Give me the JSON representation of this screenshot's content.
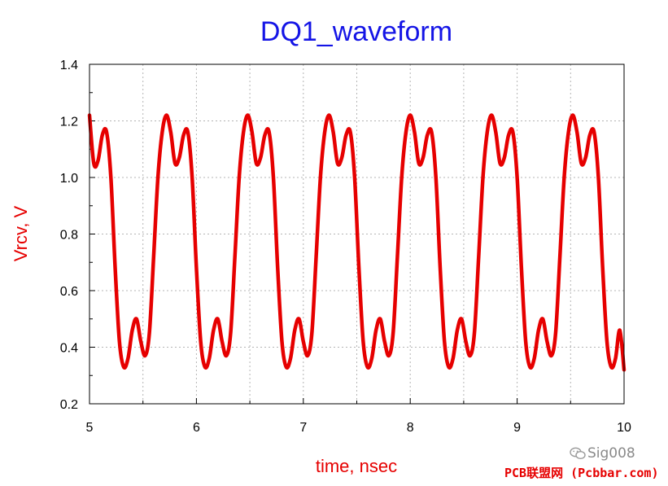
{
  "chart_data": {
    "type": "line",
    "title": "DQ1_waveform",
    "xlabel": "time, nsec",
    "ylabel": "Vrcv, V",
    "xlim": [
      5,
      10
    ],
    "ylim": [
      0.2,
      1.4
    ],
    "x_ticks": [
      "5",
      "6",
      "7",
      "8",
      "9",
      "10"
    ],
    "y_ticks": [
      "0.2",
      "0.4",
      "0.6",
      "0.8",
      "1.0",
      "1.2",
      "1.4"
    ],
    "x_tick_values": [
      5,
      6,
      7,
      8,
      9,
      10
    ],
    "y_tick_values": [
      0.2,
      0.4,
      0.6,
      0.8,
      1.0,
      1.2,
      1.4
    ],
    "grid": true,
    "series": [
      {
        "color": "#e60000",
        "x": [
          5.0,
          5.04,
          5.08,
          5.12,
          5.16,
          5.2,
          5.24,
          5.28,
          5.32,
          5.36,
          5.4,
          5.44,
          5.48,
          5.52,
          5.56,
          5.6,
          5.64,
          5.68,
          5.72,
          5.76,
          5.8,
          5.84,
          5.88,
          5.92,
          5.96,
          6.0,
          6.04,
          6.08,
          6.12,
          6.16,
          6.2,
          6.24,
          6.28,
          6.32,
          6.36,
          6.4,
          6.44,
          6.48,
          6.52,
          6.56,
          6.6,
          6.64,
          6.68,
          6.72,
          6.76,
          6.8,
          6.84,
          6.88,
          6.92,
          6.96,
          7.0,
          7.04,
          7.08,
          7.12,
          7.16,
          7.2,
          7.24,
          7.28,
          7.32,
          7.36,
          7.4,
          7.44,
          7.48,
          7.52,
          7.56,
          7.6,
          7.64,
          7.68,
          7.72,
          7.76,
          7.8,
          7.84,
          7.88,
          7.92,
          7.96,
          8.0,
          8.04,
          8.08,
          8.12,
          8.16,
          8.2,
          8.24,
          8.28,
          8.32,
          8.36,
          8.4,
          8.44,
          8.48,
          8.52,
          8.56,
          8.6,
          8.64,
          8.68,
          8.72,
          8.76,
          8.8,
          8.84,
          8.88,
          8.92,
          8.96,
          9.0,
          9.04,
          9.08,
          9.12,
          9.16,
          9.2,
          9.24,
          9.28,
          9.32,
          9.36,
          9.4,
          9.44,
          9.48,
          9.52,
          9.56,
          9.6,
          9.64,
          9.68,
          9.72,
          9.76,
          9.8,
          9.84,
          9.88,
          9.92,
          9.96,
          10.0
        ],
        "values": [
          1.22,
          1.05,
          1.06,
          1.15,
          1.16,
          1.0,
          0.68,
          0.42,
          0.33,
          0.36,
          0.46,
          0.5,
          0.42,
          0.37,
          0.45,
          0.72,
          1.0,
          1.16,
          1.22,
          1.16,
          1.05,
          1.07,
          1.15,
          1.16,
          1.0,
          0.68,
          0.42,
          0.33,
          0.36,
          0.46,
          0.5,
          0.42,
          0.37,
          0.45,
          0.72,
          1.0,
          1.16,
          1.22,
          1.16,
          1.05,
          1.07,
          1.15,
          1.16,
          1.0,
          0.68,
          0.42,
          0.33,
          0.36,
          0.46,
          0.5,
          0.42,
          0.37,
          0.45,
          0.72,
          1.0,
          1.16,
          1.22,
          1.16,
          1.05,
          1.07,
          1.15,
          1.16,
          1.0,
          0.68,
          0.42,
          0.33,
          0.36,
          0.46,
          0.5,
          0.42,
          0.37,
          0.45,
          0.72,
          1.0,
          1.16,
          1.22,
          1.16,
          1.05,
          1.07,
          1.15,
          1.16,
          1.0,
          0.68,
          0.42,
          0.33,
          0.36,
          0.46,
          0.5,
          0.42,
          0.37,
          0.45,
          0.72,
          1.0,
          1.16,
          1.22,
          1.16,
          1.05,
          1.07,
          1.15,
          1.16,
          1.0,
          0.68,
          0.42,
          0.33,
          0.36,
          0.46,
          0.5,
          0.42,
          0.37,
          0.45,
          0.72,
          1.0,
          1.16,
          1.22,
          1.16,
          1.05,
          1.07,
          1.15,
          1.16,
          1.0,
          0.68,
          0.42,
          0.33,
          0.36,
          0.46,
          0.32
        ]
      }
    ]
  },
  "watermark": {
    "account": "Sig008",
    "site": "PCB联盟网 (Pcbbar.com)",
    "icon": "wechat-icon"
  }
}
